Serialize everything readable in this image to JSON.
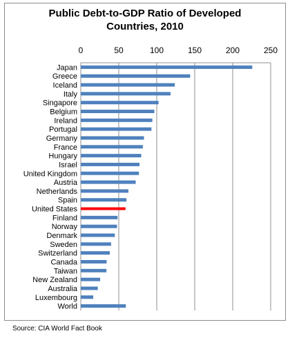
{
  "title_line1": "Public Debt-to-GDP Ratio of Developed",
  "title_line2": "Countries, 2010",
  "source": "Source: CIA World Fact Book",
  "chart_data": {
    "type": "bar",
    "orientation": "horizontal",
    "title": "Public Debt-to-GDP Ratio of Developed Countries, 2010",
    "xlabel": "",
    "ylabel": "",
    "xlim": [
      0,
      250
    ],
    "xticks": [
      0,
      50,
      100,
      150,
      200,
      250
    ],
    "x_axis_position": "top",
    "grid": "vertical",
    "bar_color": "#4f81bd",
    "highlight_color": "#ff0000",
    "highlight_category": "United States",
    "categories": [
      "Japan",
      "Greece",
      "Iceland",
      "Italy",
      "Singapore",
      "Belgium",
      "Ireland",
      "Portugal",
      "Germany",
      "France",
      "Hungary",
      "Israel",
      "United Kingdom",
      "Austria",
      "Netherlands",
      "Spain",
      "United States",
      "Finland",
      "Norway",
      "Denmark",
      "Sweden",
      "Switzerland",
      "Canada",
      "Taiwan",
      "New Zealand",
      "Australia",
      "Luxembourg",
      "World"
    ],
    "values": [
      225.8,
      144.0,
      123.8,
      118.1,
      102.4,
      96.8,
      94.2,
      93.0,
      83.2,
      81.7,
      79.6,
      77.3,
      76.5,
      72.3,
      62.7,
      60.1,
      58.9,
      48.4,
      47.7,
      44.8,
      39.9,
      38.2,
      34.0,
      33.8,
      25.5,
      22.4,
      16.4,
      59.3
    ]
  }
}
